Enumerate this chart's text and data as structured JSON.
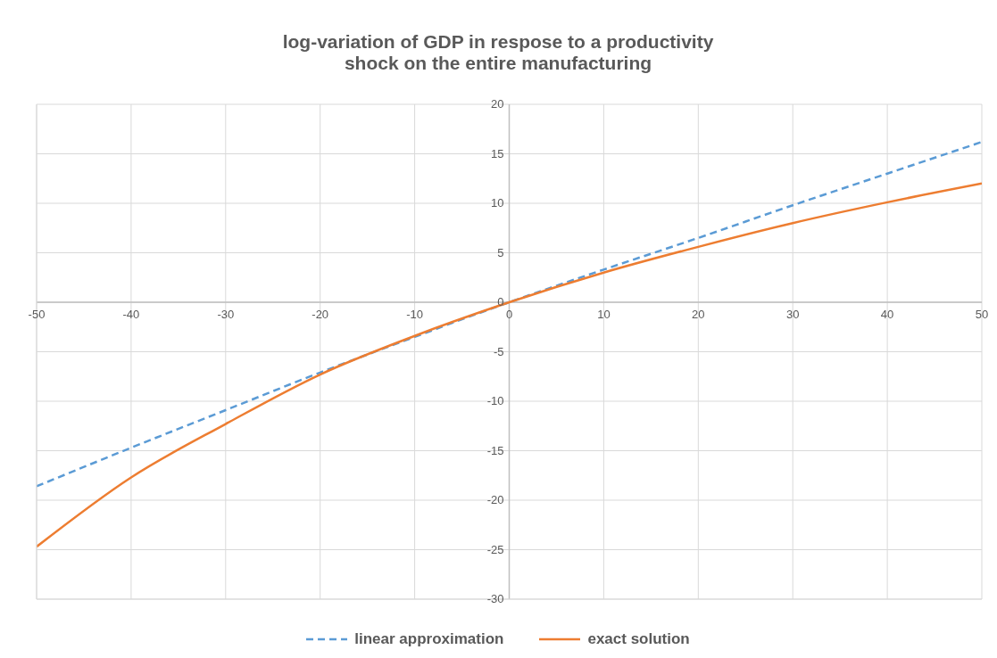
{
  "chart_data": {
    "type": "line",
    "title": "log-variation of GDP in respose to a productivity shock on the entire manufacturing",
    "x": [
      -50,
      -40,
      -30,
      -20,
      -10,
      0,
      10,
      20,
      30,
      40,
      50
    ],
    "series": [
      {
        "name": "linear approximation",
        "color": "#5b9bd5",
        "line_style": "dashed",
        "values": [
          -18.6,
          -14.7,
          -10.9,
          -7.1,
          -3.5,
          0,
          3.3,
          6.5,
          9.8,
          13.0,
          16.2
        ]
      },
      {
        "name": "exact solution",
        "color": "#ed7d31",
        "line_style": "solid",
        "values": [
          -24.7,
          -17.7,
          -12.3,
          -7.3,
          -3.4,
          0,
          3.0,
          5.6,
          8.0,
          10.1,
          12.0
        ]
      }
    ],
    "xlim": [
      -50,
      50
    ],
    "xticks": [
      -50,
      -40,
      -30,
      -20,
      -10,
      0,
      10,
      20,
      30,
      40,
      50
    ],
    "ylim": [
      -30,
      20
    ],
    "yticks": [
      -30,
      -25,
      -20,
      -15,
      -10,
      -5,
      0,
      5,
      10,
      15,
      20
    ],
    "grid": true,
    "legend": "bottom",
    "marker": "none"
  }
}
